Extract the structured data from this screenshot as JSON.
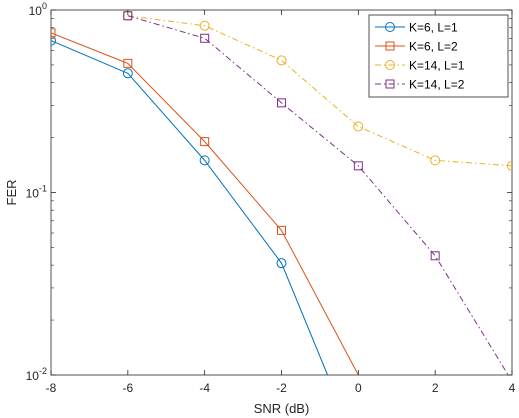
{
  "chart_data": {
    "type": "line",
    "title": "",
    "xlabel": "SNR (dB)",
    "ylabel": "FER",
    "xlim": [
      -8,
      4
    ],
    "ylim": [
      0.01,
      1
    ],
    "yscale": "log",
    "grid": false,
    "legend_position": "top-right",
    "xticks": [
      -8,
      -6,
      -4,
      -2,
      0,
      2,
      4
    ],
    "xtick_labels": [
      "-8",
      "-6",
      "-4",
      "-2",
      "0",
      "2",
      "4"
    ],
    "yticks": [
      0.01,
      0.1,
      1
    ],
    "ytick_labels": [
      {
        "base": "10",
        "exp": "-2"
      },
      {
        "base": "10",
        "exp": "-1"
      },
      {
        "base": "10",
        "exp": "0"
      }
    ],
    "series": [
      {
        "name": "K=6, L=1",
        "color": "#0072BD",
        "marker": "circle",
        "dash": "solid",
        "x": [
          -8,
          -6,
          -4,
          -2,
          -0.8
        ],
        "y": [
          0.68,
          0.45,
          0.15,
          0.041,
          0.01
        ]
      },
      {
        "name": "K=6, L=2",
        "color": "#D95319",
        "marker": "square",
        "dash": "solid",
        "x": [
          -8,
          -6,
          -4,
          -2,
          0
        ],
        "y": [
          0.75,
          0.51,
          0.19,
          0.062,
          0.01
        ]
      },
      {
        "name": "K=14, L=1",
        "color": "#EDB120",
        "marker": "circle",
        "dash": "dashdot",
        "x": [
          -6,
          -4,
          -2,
          0,
          2,
          4
        ],
        "y": [
          0.93,
          0.82,
          0.53,
          0.23,
          0.15,
          0.14
        ]
      },
      {
        "name": "K=14, L=2",
        "color": "#7E2F8E",
        "marker": "square",
        "dash": "dashdot",
        "x": [
          -6,
          -4,
          -2,
          0,
          2,
          3.9
        ],
        "y": [
          0.93,
          0.7,
          0.31,
          0.14,
          0.045,
          0.01
        ]
      }
    ]
  }
}
